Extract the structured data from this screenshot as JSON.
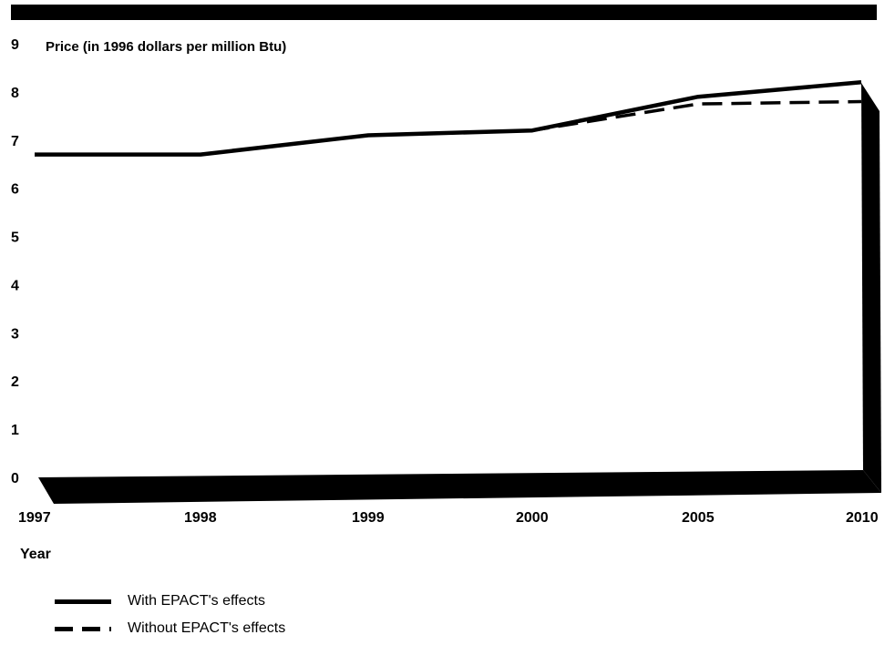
{
  "chart_data": {
    "type": "line",
    "ylabel": "Price (in 1996 dollars per million Btu)",
    "xlabel": "Year",
    "categories": [
      "1997",
      "1998",
      "1999",
      "2000",
      "2005",
      "2010"
    ],
    "ylim": [
      0,
      9
    ],
    "yticks": [
      "0",
      "1",
      "2",
      "3",
      "4",
      "5",
      "6",
      "7",
      "8",
      "9"
    ],
    "series": [
      {
        "name": "With EPACT's effects",
        "style": "solid",
        "values": [
          6.7,
          6.7,
          7.1,
          7.2,
          7.9,
          8.2
        ]
      },
      {
        "name": "Without EPACT's effects",
        "style": "dashed",
        "values": [
          6.7,
          6.7,
          7.1,
          7.2,
          7.75,
          7.8
        ]
      }
    ],
    "grid": false,
    "legend_position": "bottom-left",
    "colors": {
      "line": "#000000",
      "frame": "#000000"
    }
  }
}
